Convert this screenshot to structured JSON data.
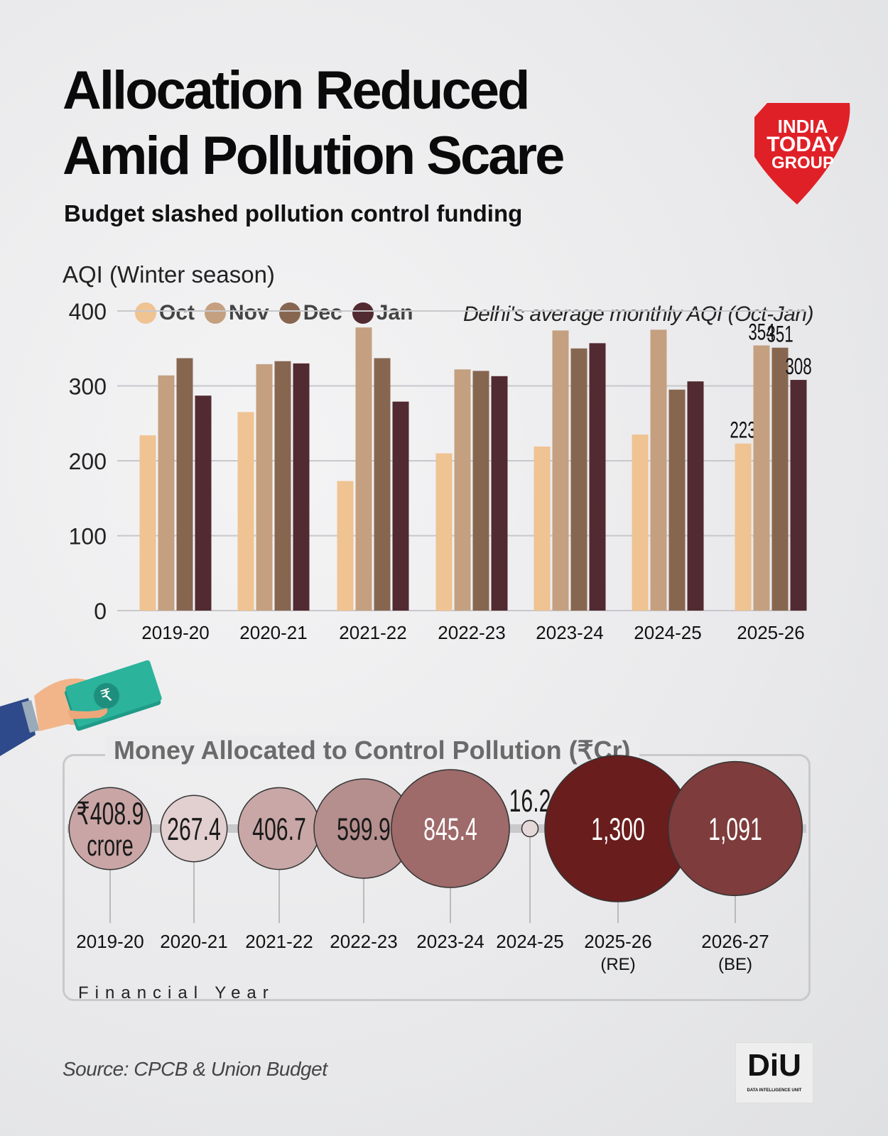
{
  "title_line1": "Allocation Reduced",
  "title_line2": "Amid Pollution Scare",
  "subtitle": "Budget slashed pollution control funding",
  "logo": {
    "line1": "INDIA",
    "line2": "TODAY",
    "line3": "GROUP",
    "color": "#e02027"
  },
  "chart_data": [
    {
      "type": "bar",
      "title": "",
      "ylabel": "AQI (Winter season)",
      "note": "Delhi's average monthly AQI (Oct-Jan)",
      "ylim": [
        0,
        400
      ],
      "yticks": [
        "0",
        "100",
        "200",
        "300",
        "400"
      ],
      "grid": true,
      "legend": "top",
      "categories": [
        "2019-20",
        "2020-21",
        "2021-22",
        "2022-23",
        "2023-24",
        "2024-25",
        "2025-26"
      ],
      "series": [
        {
          "name": "Oct",
          "color": "#efc392",
          "values": [
            234,
            265,
            173,
            210,
            219,
            235,
            223
          ]
        },
        {
          "name": "Nov",
          "color": "#c4a080",
          "values": [
            314,
            329,
            378,
            322,
            374,
            375,
            354
          ]
        },
        {
          "name": "Dec",
          "color": "#876650",
          "values": [
            337,
            333,
            337,
            320,
            350,
            295,
            351
          ]
        },
        {
          "name": "Jan",
          "color": "#522a31",
          "values": [
            287,
            330,
            279,
            313,
            357,
            306,
            308
          ]
        }
      ],
      "data_labels": [
        {
          "category": "2025-26",
          "series": "Oct",
          "text": "223"
        },
        {
          "category": "2025-26",
          "series": "Nov",
          "text": "354"
        },
        {
          "category": "2025-26",
          "series": "Dec",
          "text": "351"
        },
        {
          "category": "2025-26",
          "series": "Jan",
          "text": "308"
        }
      ]
    },
    {
      "type": "bubble",
      "title": "Money Allocated to Control Pollution (₹Cr)",
      "xlabel": "Financial Year",
      "categories": [
        "2019-20",
        "2020-21",
        "2021-22",
        "2022-23",
        "2023-24",
        "2024-25",
        "2025-26",
        "2026-27"
      ],
      "category_notes": [
        "",
        "",
        "",
        "",
        "",
        "",
        "(RE)",
        "(BE)"
      ],
      "values": [
        408.9,
        267.4,
        406.7,
        599.9,
        845.4,
        16.2,
        1300,
        1091
      ],
      "labels": [
        "₹408.9",
        "267.4",
        "406.7",
        "599.9",
        "845.4",
        "16.2",
        "1,300",
        "1,091"
      ],
      "first_unit": "crore",
      "colors": [
        "#c9a5a5",
        "#e2cfcf",
        "#c9a7a7",
        "#b58e8e",
        "#9e6a6a",
        "#e5d8d8",
        "#6a1d1d",
        "#7e3c3c"
      ]
    }
  ],
  "source": "Source: CPCB & Union Budget",
  "diu": {
    "text": "DiU",
    "sub": "DATA INTELLIGENCE UNIT"
  }
}
